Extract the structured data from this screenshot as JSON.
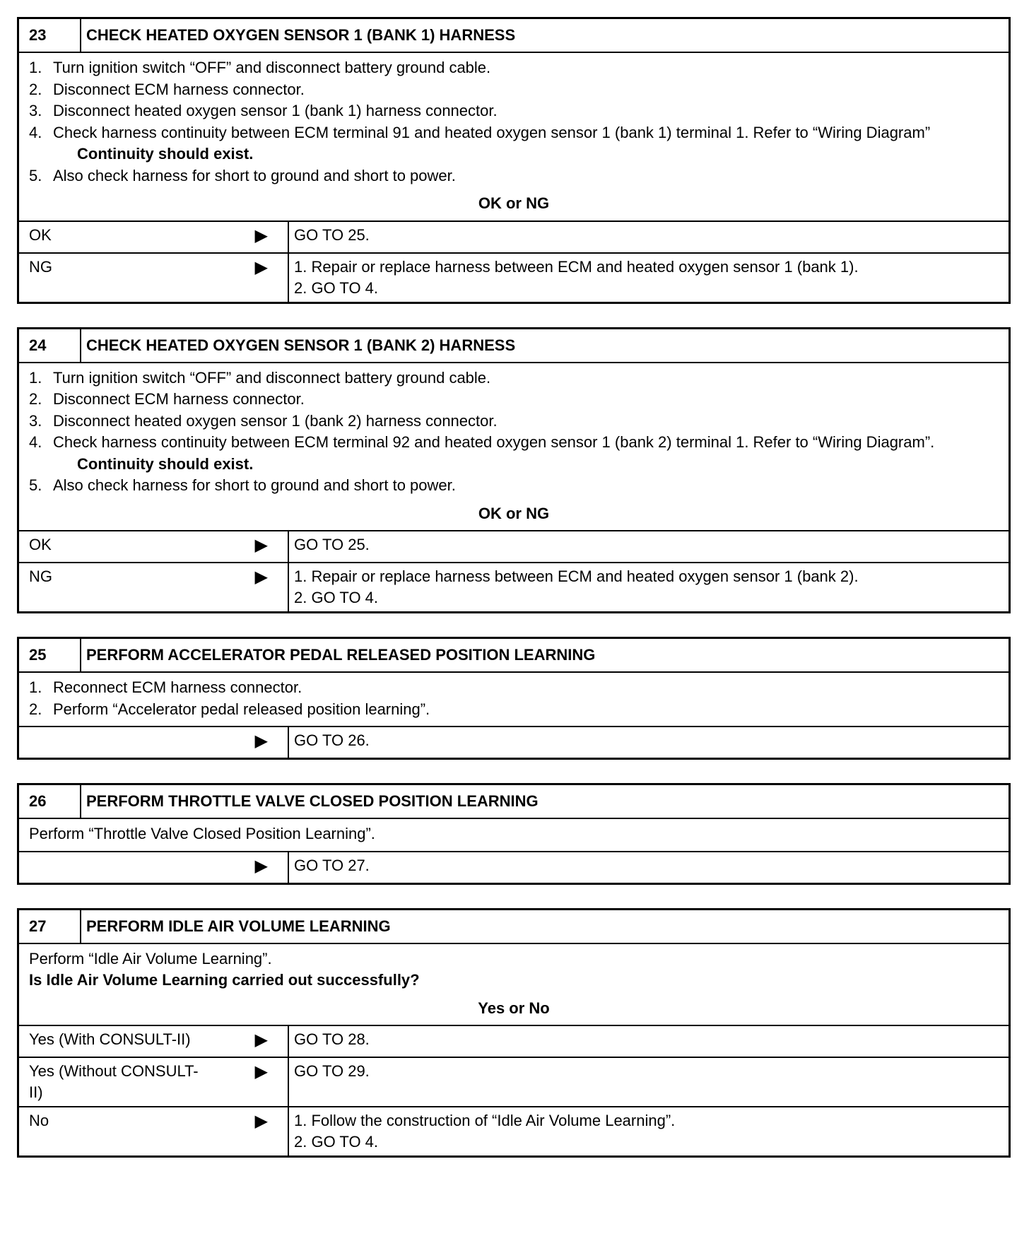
{
  "steps": [
    {
      "num": "23",
      "title": "CHECK HEATED OXYGEN SENSOR 1 (BANK 1) HARNESS",
      "items": [
        {
          "n": "1.",
          "t": "Turn ignition switch “OFF” and disconnect battery ground cable."
        },
        {
          "n": "2.",
          "t": "Disconnect ECM harness connector."
        },
        {
          "n": "3.",
          "t": "Disconnect heated oxygen sensor 1 (bank 1) harness connector."
        },
        {
          "n": "4.",
          "t": "Check harness continuity between ECM terminal 91 and heated oxygen sensor 1 (bank 1) terminal 1. Refer to “Wiring Diagram”"
        },
        {
          "n": "",
          "t": "Continuity should exist.",
          "bold": true
        },
        {
          "n": "5.",
          "t": "Also check harness for short to ground and short to power."
        }
      ],
      "question": "OK or NG",
      "results": [
        {
          "label": "OK",
          "action": [
            "GO TO 25."
          ]
        },
        {
          "label": "NG",
          "action": [
            "1.  Repair or replace harness between ECM and heated oxygen sensor 1 (bank 1).",
            "2.  GO TO 4."
          ]
        }
      ]
    },
    {
      "num": "24",
      "title": "CHECK HEATED OXYGEN SENSOR 1 (BANK 2) HARNESS",
      "items": [
        {
          "n": "1.",
          "t": "Turn ignition switch “OFF” and disconnect battery ground cable."
        },
        {
          "n": "2.",
          "t": "Disconnect ECM harness connector."
        },
        {
          "n": "3.",
          "t": "Disconnect heated oxygen sensor 1 (bank 2) harness connector."
        },
        {
          "n": "4.",
          "t": "Check harness continuity between ECM terminal 92 and heated oxygen sensor 1 (bank 2) terminal 1. Refer to “Wiring Diagram”."
        },
        {
          "n": "",
          "t": "Continuity should exist.",
          "bold": true
        },
        {
          "n": "5.",
          "t": "Also check harness for short to ground and short to power."
        }
      ],
      "question": "OK or NG",
      "results": [
        {
          "label": "OK",
          "action": [
            "GO TO 25."
          ]
        },
        {
          "label": "NG",
          "action": [
            "1.  Repair or replace harness between ECM and heated oxygen sensor 1 (bank 2).",
            "2.  GO TO 4."
          ]
        }
      ]
    },
    {
      "num": "25",
      "title": "PERFORM ACCELERATOR PEDAL RELEASED POSITION LEARNING",
      "items": [
        {
          "n": "1.",
          "t": "Reconnect ECM harness connector."
        },
        {
          "n": "2.",
          "t": "Perform “Accelerator pedal released position learning”."
        }
      ],
      "results": [
        {
          "label": "",
          "action": [
            "GO TO 26."
          ]
        }
      ]
    },
    {
      "num": "26",
      "title": "PERFORM THROTTLE VALVE CLOSED POSITION LEARNING",
      "items": [
        {
          "n": "",
          "t": "Perform “Throttle Valve Closed Position Learning”.",
          "plain": true
        }
      ],
      "results": [
        {
          "label": "",
          "action": [
            "GO TO 27."
          ]
        }
      ]
    },
    {
      "num": "27",
      "title": "PERFORM IDLE AIR VOLUME LEARNING",
      "items": [
        {
          "n": "",
          "t": "Perform “Idle Air Volume Learning”.",
          "plain": true
        },
        {
          "n": "",
          "t": "Is Idle Air Volume Learning carried out successfully?",
          "plain": true,
          "bold": true
        }
      ],
      "question": "Yes or No",
      "results": [
        {
          "label": "Yes (With CONSULT-II)",
          "action": [
            "GO TO 28."
          ]
        },
        {
          "label": "Yes (Without CONSULT-II)",
          "action": [
            "GO TO 29."
          ]
        },
        {
          "label": "No",
          "action": [
            "1.  Follow the construction of “Idle Air Volume Learning”.",
            "2.  GO TO 4."
          ]
        }
      ]
    }
  ],
  "arrow_icon": "right-triangle"
}
